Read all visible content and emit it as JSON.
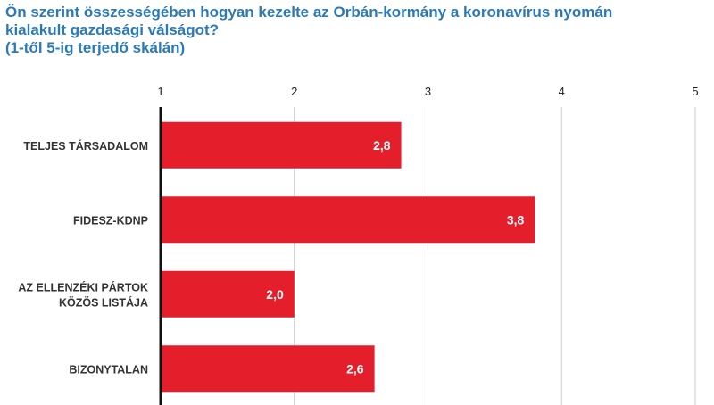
{
  "chart_data": {
    "type": "bar",
    "orientation": "horizontal",
    "title_lines": [
      "Ön szerint összességében hogyan kezelte az Orbán-kormány a koronavírus nyomán",
      "kialakult gazdasági válságot?",
      "(1-től 5-ig terjedő skálán)"
    ],
    "categories": [
      [
        "TELJES TÁRSADALOM"
      ],
      [
        "FIDESZ-KDNP"
      ],
      [
        "AZ ELLENZÉKI PÁRTOK",
        "KÖZÖS LISTÁJA"
      ],
      [
        "BIZONYTALAN"
      ]
    ],
    "values": [
      2.8,
      3.8,
      2.0,
      2.6
    ],
    "value_labels": [
      "2,8",
      "3,8",
      "2,0",
      "2,6"
    ],
    "xlim": [
      1,
      5
    ],
    "xticks": [
      "1",
      "2",
      "3",
      "4",
      "5"
    ],
    "grid": true,
    "colors": {
      "bar": "#e41e2b",
      "title": "#2a7ab8",
      "grid": "#cccccc",
      "axis": "#111111"
    }
  }
}
